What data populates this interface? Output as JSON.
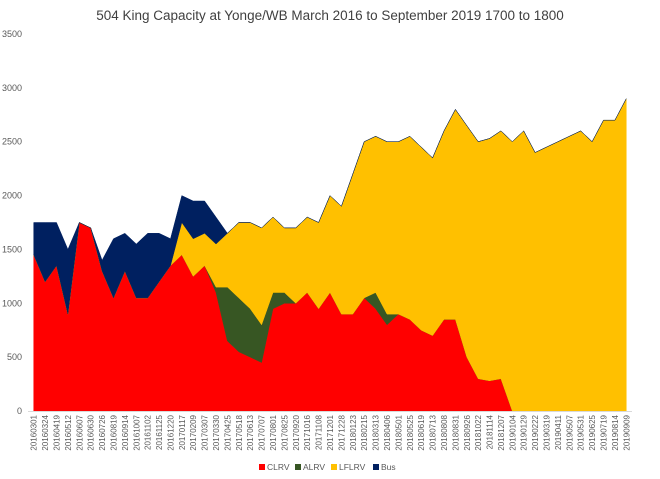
{
  "chart_data": {
    "type": "area",
    "stacked": true,
    "title": "504 King Capacity at Yonge/WB March 2016 to September 2019  1700 to 1800",
    "xlabel": "",
    "ylabel": "",
    "ylim": [
      0,
      3500
    ],
    "yticks": [
      0,
      500,
      1000,
      1500,
      2000,
      2500,
      3000,
      3500
    ],
    "grid": false,
    "legend_position": "bottom",
    "x_tick_labels": [
      "20160301",
      "20160324",
      "20160419",
      "20160512",
      "20160607",
      "20160630",
      "20160726",
      "20160819",
      "20160914",
      "20161007",
      "20161102",
      "20161125",
      "20161220",
      "20170117",
      "20170209",
      "20170307",
      "20170330",
      "20170425",
      "20170518",
      "20170613",
      "20170707",
      "20170801",
      "20170825",
      "20170920",
      "20171016",
      "20171108",
      "20171201",
      "20171228",
      "20180123",
      "20180215",
      "20180313",
      "20180406",
      "20180501",
      "20180525",
      "20180619",
      "20180713",
      "20180808",
      "20180831",
      "20180926",
      "20181022",
      "20181114",
      "20181207",
      "20190104",
      "20190129",
      "20190222",
      "20190319",
      "20190411",
      "20190507",
      "20190531",
      "20190625",
      "20190719",
      "20190814",
      "20190909"
    ],
    "series": [
      {
        "name": "CLRV",
        "color": "#ff0000",
        "values": [
          1450,
          1200,
          1350,
          900,
          1750,
          1700,
          1300,
          1050,
          1300,
          1050,
          1050,
          1200,
          1350,
          1450,
          1250,
          1350,
          1100,
          650,
          550,
          500,
          450,
          950,
          1000,
          1000,
          1100,
          950,
          1100,
          900,
          900,
          1050,
          950,
          800,
          900,
          850,
          750,
          700,
          850,
          850,
          500,
          300,
          280,
          300,
          0,
          0,
          0,
          0,
          0,
          0,
          0,
          0,
          0,
          0,
          0
        ]
      },
      {
        "name": "ALRV",
        "color": "#375623",
        "values": [
          0,
          0,
          0,
          0,
          0,
          0,
          0,
          0,
          0,
          0,
          0,
          0,
          0,
          0,
          0,
          0,
          50,
          500,
          500,
          450,
          350,
          150,
          100,
          0,
          0,
          0,
          0,
          0,
          0,
          0,
          150,
          100,
          0,
          0,
          0,
          0,
          0,
          0,
          0,
          0,
          0,
          0,
          0,
          0,
          0,
          0,
          0,
          0,
          0,
          0,
          0,
          0,
          0
        ]
      },
      {
        "name": "LFLRV",
        "color": "#ffc000",
        "values": [
          0,
          0,
          0,
          0,
          0,
          0,
          0,
          0,
          0,
          0,
          0,
          0,
          0,
          300,
          350,
          300,
          400,
          500,
          700,
          800,
          900,
          700,
          600,
          700,
          700,
          800,
          900,
          1000,
          1300,
          1450,
          1450,
          1600,
          1600,
          1700,
          1700,
          1650,
          1750,
          1950,
          2150,
          2200,
          2250,
          2300,
          2500,
          2600,
          2400,
          2450,
          2500,
          2550,
          2600,
          2500,
          2700,
          2700,
          2900
        ]
      },
      {
        "name": "Bus",
        "color": "#002060",
        "values": [
          300,
          550,
          400,
          600,
          0,
          0,
          100,
          550,
          350,
          500,
          600,
          450,
          250,
          250,
          350,
          300,
          250,
          0,
          0,
          0,
          0,
          0,
          0,
          0,
          0,
          0,
          0,
          0,
          0,
          0,
          0,
          0,
          0,
          0,
          0,
          0,
          0,
          0,
          0,
          0,
          0,
          0,
          0,
          0,
          0,
          0,
          0,
          0,
          0,
          0,
          0,
          0,
          0
        ]
      }
    ]
  }
}
